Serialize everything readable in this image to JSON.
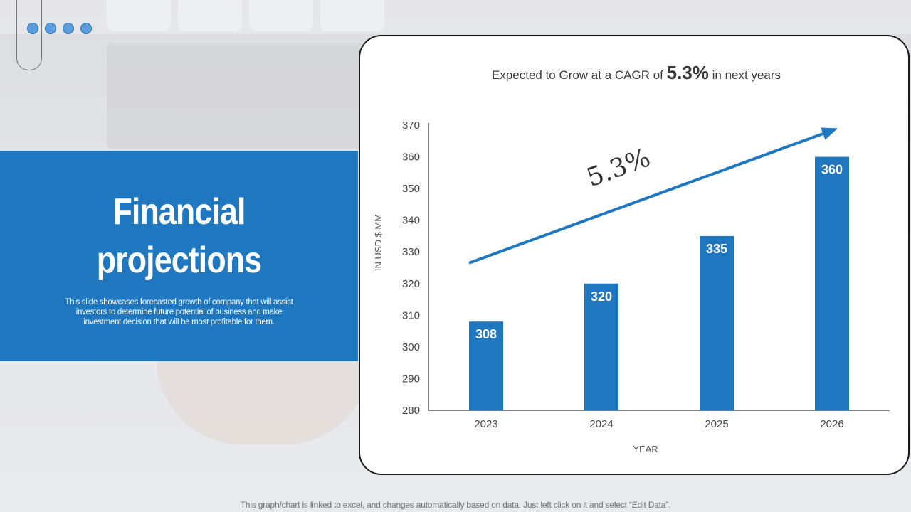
{
  "slide": {
    "title_line1": "Financial",
    "title_line2": "projections",
    "description": "This slide showcases forecasted growth of company that will assist investors to determine future potential of business and make investment decision that will be most profitable for them.",
    "footer_note": "This graph/chart is linked to excel,  and changes automatically based on data. Just left click on it and select “Edit Data”."
  },
  "colors": {
    "accent": "#1f77c0",
    "dot_fill": "#5b9ee0"
  },
  "chart_data": {
    "type": "bar",
    "title_prefix": "Expected to Grow at a CAGR of ",
    "title_highlight": "5.3%",
    "title_suffix": " in next years",
    "categories": [
      "2023",
      "2024",
      "2025",
      "2026"
    ],
    "values": [
      308,
      320,
      335,
      360
    ],
    "data_labels": [
      "308",
      "320",
      "335",
      "360"
    ],
    "xlabel": "YEAR",
    "ylabel": "IN USD $ MM",
    "ylim": [
      280,
      370
    ],
    "yticks": [
      280,
      290,
      300,
      310,
      320,
      330,
      340,
      350,
      360,
      370
    ],
    "grid": false,
    "bar_color": "#1f77c0",
    "arrow_annotation": "5.3%",
    "arrow_start": [
      2023,
      326.5
    ],
    "arrow_end": [
      2026,
      369
    ]
  }
}
